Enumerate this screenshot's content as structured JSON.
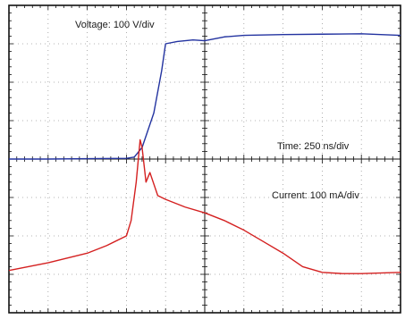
{
  "annotations": {
    "voltage": "Voltage: 100 V/div",
    "time": "Time: 250 ns/div",
    "current": "Current: 100 mA/div"
  },
  "colors": {
    "voltage_trace": "#2333a0",
    "current_trace": "#d42020",
    "grid": "#9a9a9a",
    "frame": "#111111"
  },
  "chart_data": {
    "type": "line",
    "grid": true,
    "divisions": {
      "x": 10,
      "y": 8
    },
    "xlim": [
      0,
      10
    ],
    "ylim": [
      -4,
      4
    ],
    "x_unit": "div (250 ns/div)",
    "series": [
      {
        "name": "Voltage",
        "x": [
          0,
          1,
          2,
          3,
          3.2,
          3.4,
          3.7,
          3.9,
          4.0,
          4.3,
          4.7,
          5.0,
          5.5,
          6.0,
          7.0,
          8.0,
          9.0,
          10.0
        ],
        "y": [
          0.0,
          0.0,
          0.01,
          0.02,
          0.05,
          0.3,
          1.2,
          2.3,
          3.0,
          3.06,
          3.1,
          3.08,
          3.18,
          3.22,
          3.24,
          3.25,
          3.26,
          3.22
        ]
      },
      {
        "name": "Current",
        "x": [
          0,
          1,
          2,
          2.5,
          3.0,
          3.12,
          3.25,
          3.35,
          3.4,
          3.5,
          3.6,
          3.8,
          4.0,
          4.5,
          5.0,
          5.5,
          6.0,
          6.5,
          7.0,
          7.5,
          8.0,
          8.5,
          9.0,
          10.0
        ],
        "y": [
          -2.9,
          -2.7,
          -2.45,
          -2.25,
          -2.0,
          -1.6,
          -0.6,
          0.5,
          0.3,
          -0.6,
          -0.35,
          -0.95,
          -1.05,
          -1.25,
          -1.4,
          -1.6,
          -1.85,
          -2.15,
          -2.45,
          -2.8,
          -2.95,
          -2.98,
          -2.98,
          -2.95
        ]
      }
    ]
  }
}
